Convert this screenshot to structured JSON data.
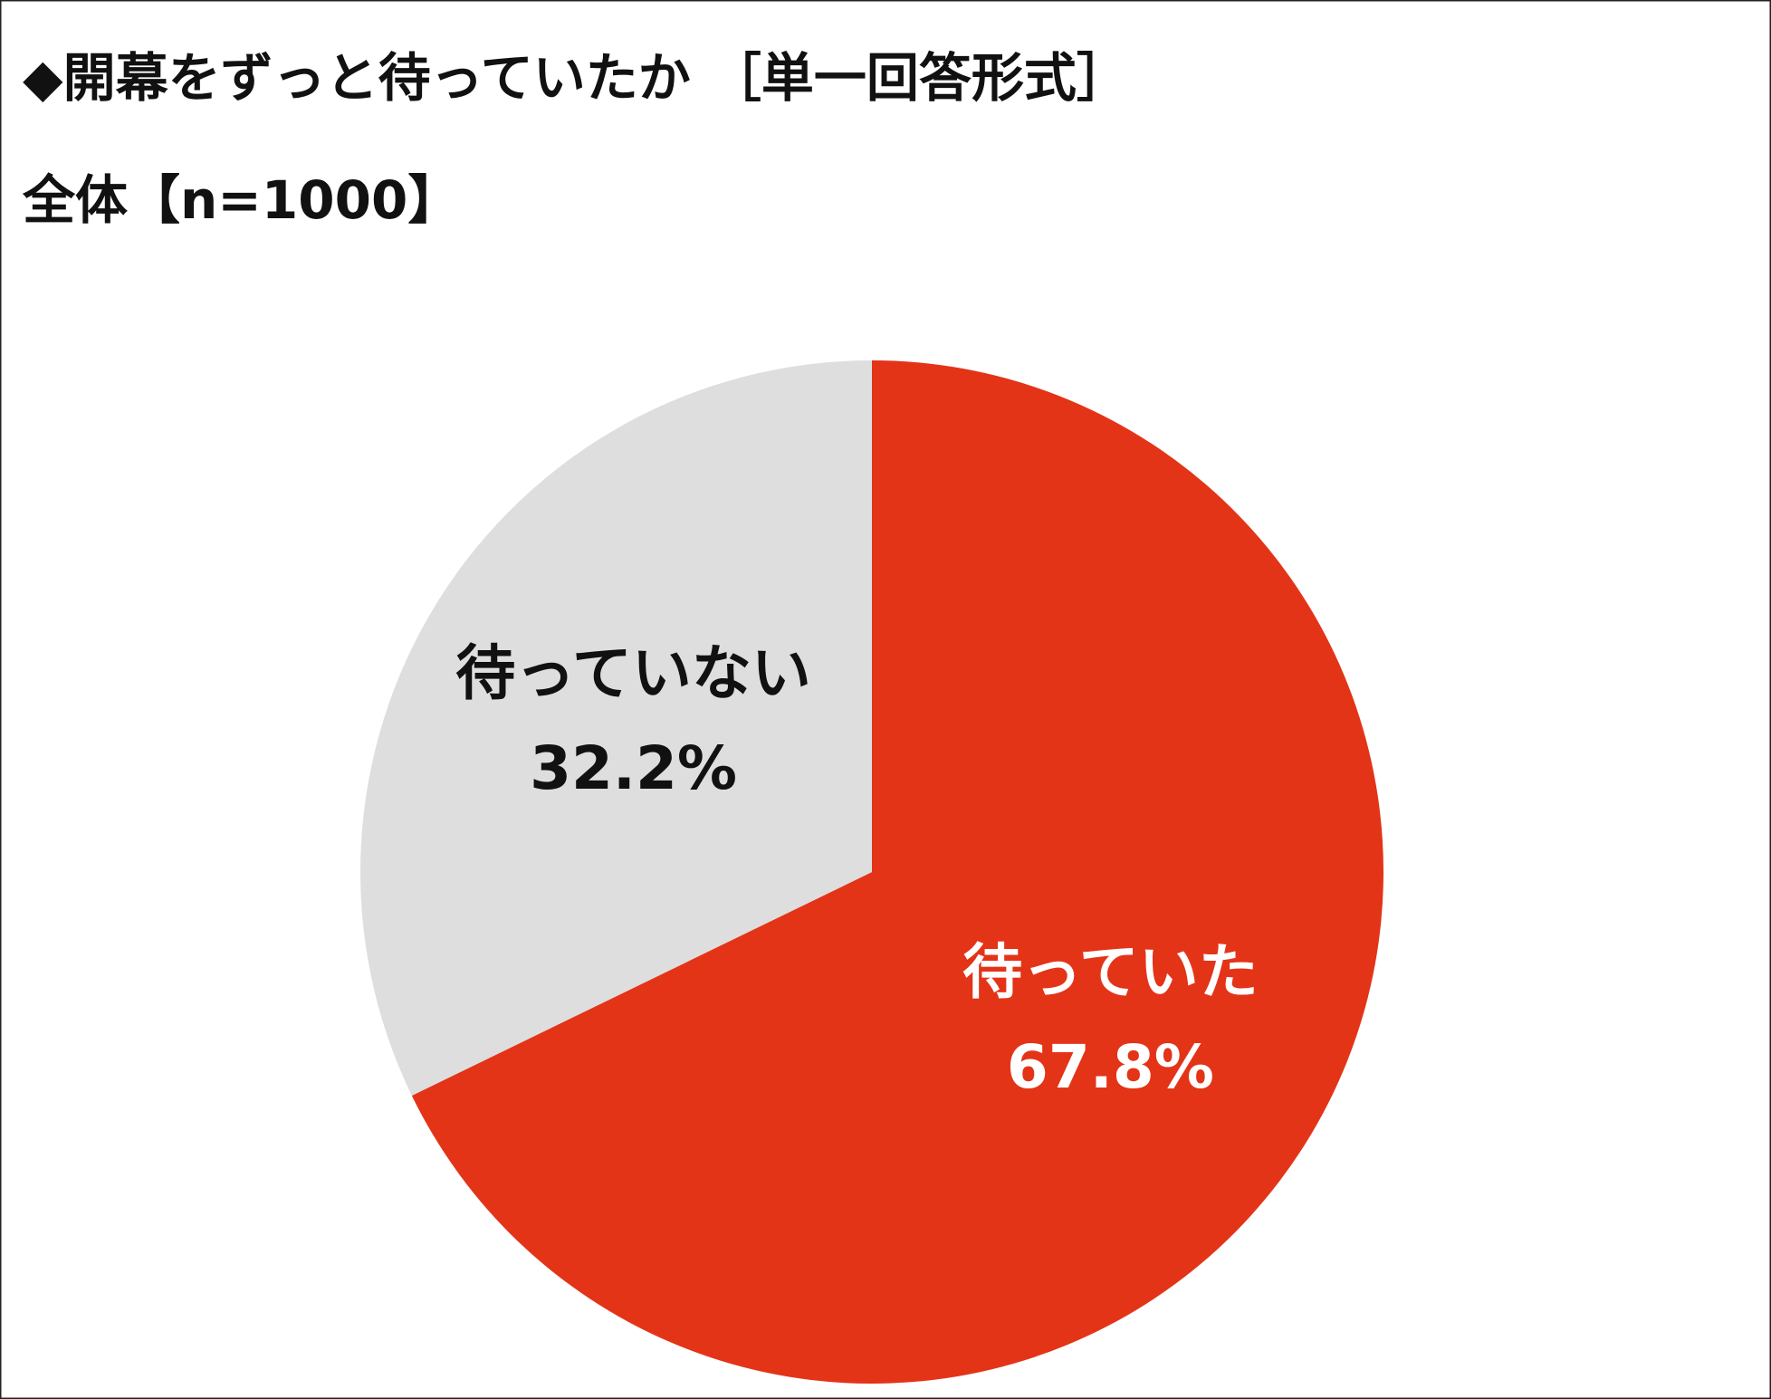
{
  "chart_data": {
    "type": "pie",
    "title": "◆開幕をずっと待っていたか ［単一回答形式］",
    "subtitle": "全体【n=1000】",
    "categories": [
      "待っていた",
      "待っていない"
    ],
    "values": [
      67.8,
      32.2
    ],
    "value_labels": [
      "67.8%",
      "32.2%"
    ],
    "colors": [
      "#e33418",
      "#dedede"
    ]
  }
}
